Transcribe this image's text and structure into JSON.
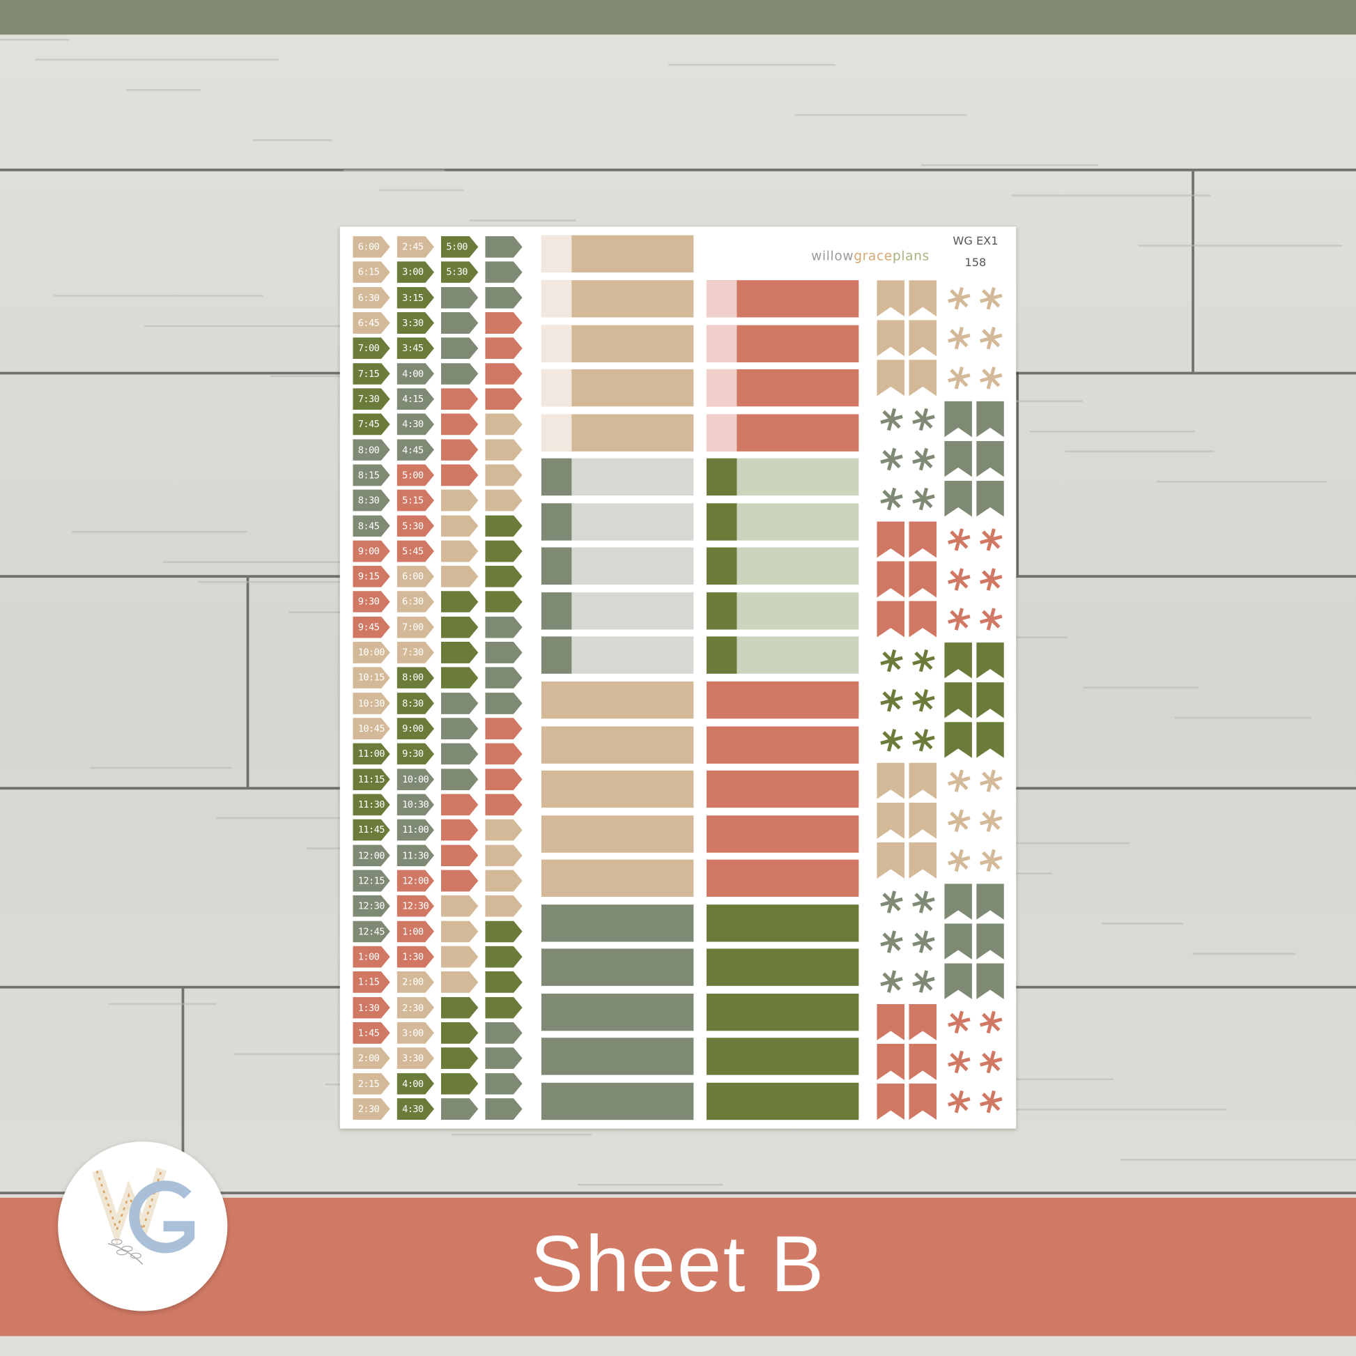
{
  "colors": {
    "tan": "#d4b998",
    "green": "#6b7c3a",
    "sage": "#7f8a74",
    "coral": "#d07863",
    "cream": "#f2e8df",
    "pink": "#f0cfca",
    "lightsage": "#d5d9d2",
    "lightgreen": "#cdd4bd",
    "banner": "#d07a65",
    "topbar": "#808a72"
  },
  "sheet": {
    "brand": {
      "part1": "willow",
      "part2": "grace",
      "part3": "plans"
    },
    "code": "WG EX1",
    "number": "158",
    "time_columns": [
      {
        "labels": [
          "6:00",
          "6:15",
          "6:30",
          "6:45",
          "7:00",
          "7:15",
          "7:30",
          "7:45",
          "8:00",
          "8:15",
          "8:30",
          "8:45",
          "9:00",
          "9:15",
          "9:30",
          "9:45",
          "10:00",
          "10:15",
          "10:30",
          "10:45",
          "11:00",
          "11:15",
          "11:30",
          "11:45",
          "12:00",
          "12:15",
          "12:30",
          "12:45",
          "1:00",
          "1:15",
          "1:30",
          "1:45",
          "2:00",
          "2:15",
          "2:30"
        ],
        "colors": [
          "tan",
          "tan",
          "tan",
          "tan",
          "green",
          "green",
          "green",
          "green",
          "sage",
          "sage",
          "sage",
          "sage",
          "coral",
          "coral",
          "coral",
          "coral",
          "tan",
          "tan",
          "tan",
          "tan",
          "green",
          "green",
          "green",
          "green",
          "sage",
          "sage",
          "sage",
          "sage",
          "coral",
          "coral",
          "coral",
          "coral",
          "tan",
          "tan",
          "tan"
        ]
      },
      {
        "labels": [
          "2:45",
          "3:00",
          "3:15",
          "3:30",
          "3:45",
          "4:00",
          "4:15",
          "4:30",
          "4:45",
          "5:00",
          "5:15",
          "5:30",
          "5:45",
          "6:00",
          "6:30",
          "7:00",
          "7:30",
          "8:00",
          "8:30",
          "9:00",
          "9:30",
          "10:00",
          "10:30",
          "11:00",
          "11:30",
          "12:00",
          "12:30",
          "1:00",
          "1:30",
          "2:00",
          "2:30",
          "3:00",
          "3:30",
          "4:00",
          "4:30"
        ],
        "colors": [
          "tan",
          "green",
          "green",
          "green",
          "green",
          "sage",
          "sage",
          "sage",
          "sage",
          "coral",
          "coral",
          "coral",
          "coral",
          "tan",
          "tan",
          "tan",
          "tan",
          "green",
          "green",
          "green",
          "green",
          "sage",
          "sage",
          "sage",
          "sage",
          "coral",
          "coral",
          "coral",
          "coral",
          "tan",
          "tan",
          "tan",
          "tan",
          "green",
          "green"
        ]
      },
      {
        "labels": [
          "5:00",
          "5:30"
        ],
        "colors": [
          "green",
          "green",
          "sage",
          "sage",
          "sage",
          "sage",
          "coral",
          "coral",
          "coral",
          "coral",
          "tan",
          "tan",
          "tan",
          "tan",
          "green",
          "green",
          "green",
          "green",
          "sage",
          "sage",
          "sage",
          "sage",
          "coral",
          "coral",
          "coral",
          "coral",
          "tan",
          "tan",
          "tan",
          "tan",
          "green",
          "green",
          "green",
          "green",
          "sage"
        ]
      },
      {
        "labels": [],
        "colors": [
          "sage",
          "sage",
          "sage",
          "coral",
          "coral",
          "coral",
          "coral",
          "tan",
          "tan",
          "tan",
          "tan",
          "green",
          "green",
          "green",
          "green",
          "sage",
          "sage",
          "sage",
          "sage",
          "coral",
          "coral",
          "coral",
          "coral",
          "tan",
          "tan",
          "tan",
          "tan",
          "green",
          "green",
          "green",
          "green",
          "sage",
          "sage",
          "sage",
          "sage"
        ]
      }
    ],
    "rect_columns": [
      {
        "items": [
          {
            "c": "tan",
            "s": "cream"
          },
          null,
          {
            "c": "tan",
            "s": "cream"
          },
          {
            "c": "tan",
            "s": "cream"
          },
          {
            "c": "tan",
            "s": "cream"
          },
          {
            "c": "tan",
            "s": "cream"
          },
          {
            "c": "lightsage",
            "s": "sage"
          },
          {
            "c": "lightsage",
            "s": "sage"
          },
          {
            "c": "lightsage",
            "s": "sage"
          },
          {
            "c": "lightsage",
            "s": "sage"
          },
          {
            "c": "lightsage",
            "s": "sage"
          },
          {
            "c": "tan"
          },
          {
            "c": "tan"
          },
          {
            "c": "tan"
          },
          {
            "c": "tan"
          },
          {
            "c": "tan"
          },
          {
            "c": "sage"
          },
          {
            "c": "sage"
          },
          {
            "c": "sage"
          },
          {
            "c": "sage"
          },
          {
            "c": "sage"
          }
        ]
      },
      {
        "items": [
          null,
          null,
          {
            "c": "coral",
            "s": "pink"
          },
          {
            "c": "coral",
            "s": "pink"
          },
          {
            "c": "coral",
            "s": "pink"
          },
          {
            "c": "coral",
            "s": "pink"
          },
          {
            "c": "lightgreen",
            "s": "green"
          },
          {
            "c": "lightgreen",
            "s": "green"
          },
          {
            "c": "lightgreen",
            "s": "green"
          },
          {
            "c": "lightgreen",
            "s": "green"
          },
          {
            "c": "lightgreen",
            "s": "green"
          },
          {
            "c": "coral"
          },
          {
            "c": "coral"
          },
          {
            "c": "coral"
          },
          {
            "c": "coral"
          },
          {
            "c": "coral"
          },
          {
            "c": "green"
          },
          {
            "c": "green"
          },
          {
            "c": "green"
          },
          {
            "c": "green"
          },
          {
            "c": "green"
          }
        ]
      }
    ],
    "icon_columns": [
      {
        "groups": [
          {
            "type": "flag",
            "color": "tan"
          },
          {
            "type": "asterisk",
            "color": "sage"
          },
          {
            "type": "flag",
            "color": "coral"
          },
          {
            "type": "asterisk",
            "color": "green"
          },
          {
            "type": "flag",
            "color": "tan"
          },
          {
            "type": "asterisk",
            "color": "sage"
          },
          {
            "type": "flag",
            "color": "coral"
          }
        ]
      },
      {
        "groups": [
          {
            "type": "asterisk",
            "color": "tan"
          },
          {
            "type": "flag",
            "color": "sage"
          },
          {
            "type": "asterisk",
            "color": "coral"
          },
          {
            "type": "flag",
            "color": "green"
          },
          {
            "type": "asterisk",
            "color": "tan"
          },
          {
            "type": "flag",
            "color": "sage"
          },
          {
            "type": "asterisk",
            "color": "coral"
          }
        ]
      }
    ]
  },
  "banner": {
    "title": "Sheet B"
  },
  "logo": {
    "text": "WG"
  }
}
